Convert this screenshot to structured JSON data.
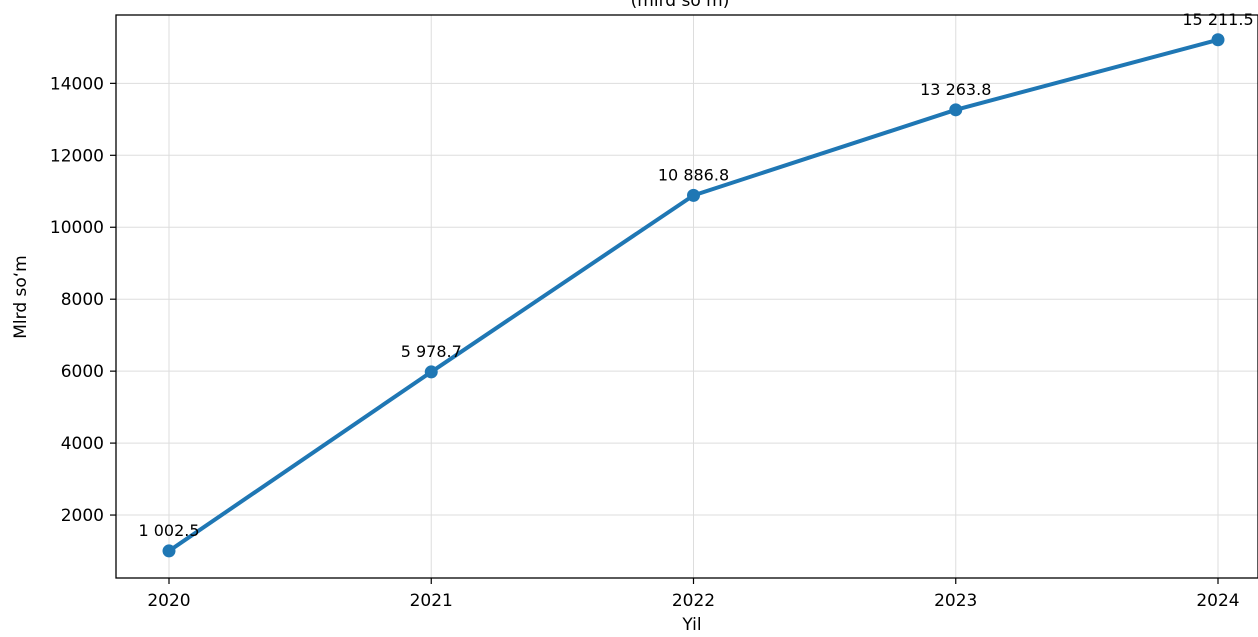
{
  "chart_data": {
    "type": "line",
    "title": "(mlrd so‘m)",
    "xlabel": "Yil",
    "ylabel": "Mlrd so‘m",
    "x": [
      "2020",
      "2021",
      "2022",
      "2023",
      "2024"
    ],
    "y_ticks": [
      2000,
      4000,
      6000,
      8000,
      10000,
      12000,
      14000
    ],
    "ylim": [
      250,
      15900
    ],
    "grid": true,
    "series": [
      {
        "values": [
          1002.5,
          5978.7,
          10886.8,
          13263.8,
          15211.5
        ],
        "labels": [
          "1 002.5",
          "5 978.7",
          "10 886.8",
          "13 263.8",
          "15 211.5"
        ],
        "color": "#1f77b4"
      }
    ]
  }
}
